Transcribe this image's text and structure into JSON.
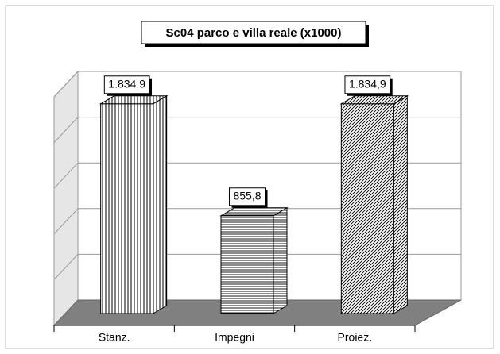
{
  "chart_data": {
    "type": "bar3d",
    "title": "Sc04 parco e villa reale (x1000)",
    "categories": [
      "Stanz.",
      "Impegni",
      "Proiez."
    ],
    "values": [
      1834.9,
      855.8,
      1834.9
    ],
    "value_labels": [
      "1.834,9",
      "855,8",
      "1.834,9"
    ],
    "patterns": [
      "vertical",
      "horizontal",
      "diagonal"
    ],
    "ylim": [
      0,
      2000
    ],
    "yticks": [
      0,
      400,
      800,
      1200,
      1600,
      2000
    ],
    "grid": true
  }
}
